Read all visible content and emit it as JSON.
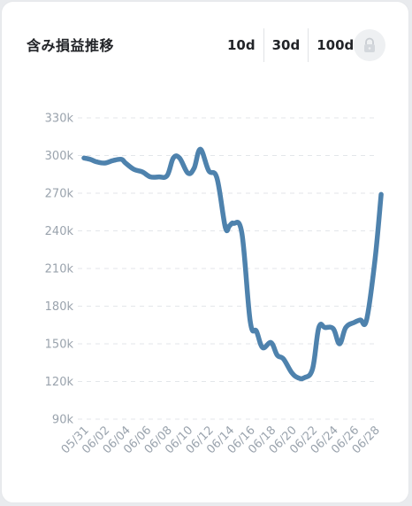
{
  "header": {
    "title": "含み損益推移",
    "ranges": [
      "10d",
      "30d",
      "100d"
    ]
  },
  "lock_icon": "lock-icon",
  "colors": {
    "line": "#4e82ad",
    "grid": "#e3e6ea",
    "axis_text": "#9aa3ad",
    "title": "#222428"
  },
  "chart_data": {
    "type": "line",
    "title": "含み損益推移",
    "xlabel": "",
    "ylabel": "",
    "ylim": [
      90000,
      330000
    ],
    "yticks": [
      90000,
      120000,
      150000,
      180000,
      210000,
      240000,
      270000,
      300000,
      330000
    ],
    "ytick_labels": [
      "90k",
      "120k",
      "150k",
      "180k",
      "210k",
      "240k",
      "270k",
      "300k",
      "330k"
    ],
    "grid": true,
    "xtick_labels": [
      "05/31",
      "06/02",
      "06/04",
      "06/06",
      "06/08",
      "06/10",
      "06/12",
      "06/14",
      "06/16",
      "06/18",
      "06/20",
      "06/22",
      "06/24",
      "06/26",
      "06/28"
    ],
    "x": [
      0,
      0.3,
      0.6,
      1,
      1.4,
      1.8,
      2,
      2.4,
      2.8,
      3.2,
      3.6,
      4,
      4.3,
      4.6,
      5,
      5.3,
      5.6,
      6,
      6.4,
      6.8,
      7,
      7.2,
      7.6,
      8,
      8.3,
      8.6,
      9,
      9.3,
      9.6,
      10,
      10.3,
      10.6,
      11,
      11.3,
      11.6,
      12,
      12.3,
      12.6,
      13,
      13.3,
      13.6,
      14,
      14.3
    ],
    "series": [
      {
        "values": [
          298000,
          297000,
          295000,
          294000,
          296000,
          297000,
          294000,
          289000,
          287000,
          283000,
          283000,
          284000,
          298000,
          298000,
          286000,
          290000,
          305000,
          288000,
          282000,
          243000,
          244000,
          246000,
          238000,
          168000,
          160000,
          147000,
          151000,
          141000,
          138000,
          127000,
          123000,
          123000,
          130000,
          163000,
          163000,
          162000,
          150000,
          163000,
          167000,
          169000,
          169000,
          216000,
          269000
        ]
      }
    ]
  }
}
